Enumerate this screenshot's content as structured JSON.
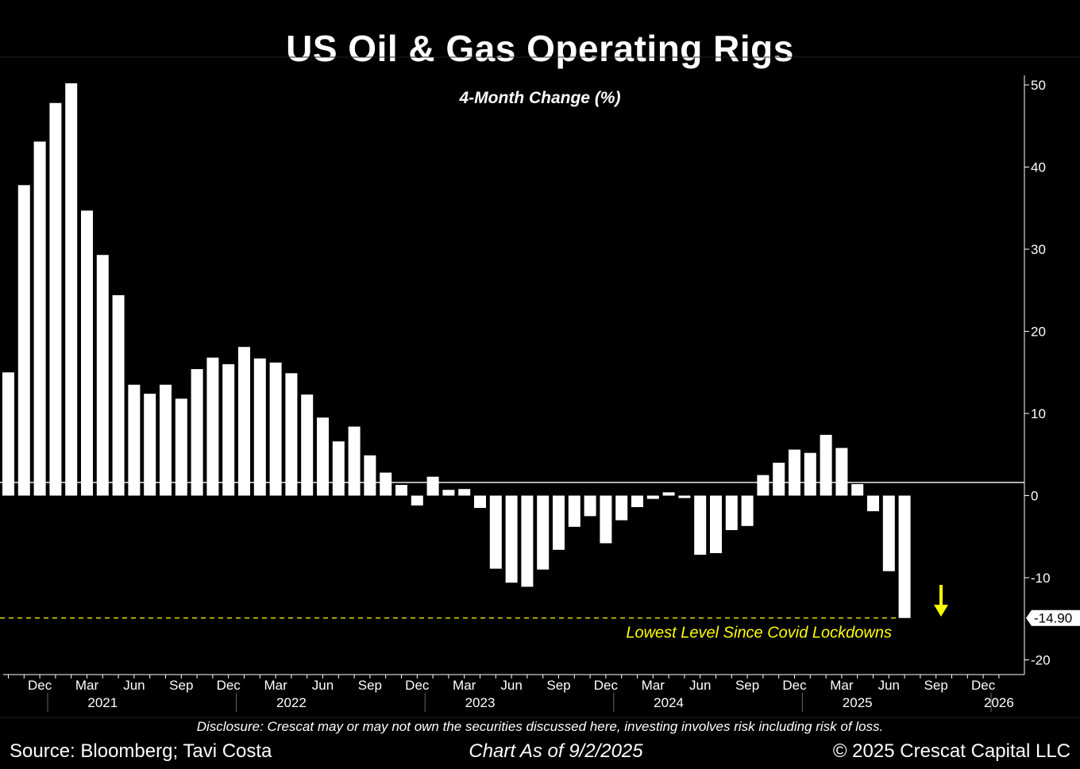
{
  "title": "US Oil & Gas Operating Rigs",
  "subtitle": "4-Month Change (%)",
  "footer": {
    "disclosure": "Disclosure: Crescat may or may not own the securities discussed here, investing involves risk including risk of loss.",
    "source": "Source: Bloomberg; Tavi Costa",
    "as_of": "Chart As of 9/2/2025",
    "copyright": "© 2025 Crescat Capital LLC"
  },
  "colors": {
    "background": "#000000",
    "bars": "#ffffff",
    "annotation": "#ffff00",
    "axis": "#ffffff"
  },
  "chart_data": {
    "type": "bar",
    "title": "US Oil & Gas Operating Rigs",
    "subtitle": "4-Month Change (%)",
    "ylim": [
      -21,
      52
    ],
    "y_ticks": [
      50,
      40,
      30,
      20,
      10,
      0,
      -10,
      -20
    ],
    "y_axis_side": "right",
    "x_start": "2020-10",
    "x_end": "2026-01",
    "months": [
      "2020-10",
      "2020-11",
      "2020-12",
      "2021-01",
      "2021-02",
      "2021-03",
      "2021-04",
      "2021-05",
      "2021-06",
      "2021-07",
      "2021-08",
      "2021-09",
      "2021-10",
      "2021-11",
      "2021-12",
      "2022-01",
      "2022-02",
      "2022-03",
      "2022-04",
      "2022-05",
      "2022-06",
      "2022-07",
      "2022-08",
      "2022-09",
      "2022-10",
      "2022-11",
      "2022-12",
      "2023-01",
      "2023-02",
      "2023-03",
      "2023-04",
      "2023-05",
      "2023-06",
      "2023-07",
      "2023-08",
      "2023-09",
      "2023-10",
      "2023-11",
      "2023-12",
      "2024-01",
      "2024-02",
      "2024-03",
      "2024-04",
      "2024-05",
      "2024-06",
      "2024-07",
      "2024-08",
      "2024-09",
      "2024-10",
      "2024-11",
      "2024-12",
      "2025-01",
      "2025-02",
      "2025-03",
      "2025-04",
      "2025-05",
      "2025-06",
      "2025-07"
    ],
    "values": [
      15.0,
      37.8,
      43.1,
      47.8,
      50.2,
      34.7,
      29.3,
      24.4,
      13.5,
      12.4,
      13.5,
      11.8,
      15.4,
      16.8,
      16.0,
      18.1,
      16.7,
      16.2,
      14.9,
      12.3,
      9.5,
      6.6,
      8.4,
      4.9,
      2.8,
      1.3,
      -1.2,
      2.3,
      0.7,
      0.8,
      -1.5,
      -8.9,
      -10.6,
      -11.1,
      -9.0,
      -6.6,
      -3.8,
      -2.5,
      -5.8,
      -3.0,
      -1.4,
      -0.4,
      0.4,
      -0.3,
      -7.2,
      -7.0,
      -4.2,
      -3.7,
      2.5,
      4.0,
      5.6,
      5.2,
      7.4,
      5.8,
      1.4,
      -1.9,
      -9.2,
      -14.9
    ],
    "x_tick_labels": [
      "Dec",
      "Mar",
      "Jun",
      "Sep",
      "Dec",
      "Mar",
      "Jun",
      "Sep",
      "Dec",
      "Mar",
      "Jun",
      "Sep",
      "Dec",
      "Mar",
      "Jun",
      "Sep",
      "Dec",
      "Mar",
      "Jun",
      "Sep",
      "Dec"
    ],
    "x_tick_months": [
      "2020-12",
      "2021-03",
      "2021-06",
      "2021-09",
      "2021-12",
      "2022-03",
      "2022-06",
      "2022-09",
      "2022-12",
      "2023-03",
      "2023-06",
      "2023-09",
      "2023-12",
      "2024-03",
      "2024-06",
      "2024-09",
      "2024-12",
      "2025-03",
      "2025-06",
      "2025-09",
      "2025-12"
    ],
    "year_labels": [
      "2021",
      "2022",
      "2023",
      "2024",
      "2025",
      "2026"
    ],
    "year_label_months": [
      "2021-04",
      "2022-04",
      "2023-04",
      "2024-04",
      "2025-04",
      "2026-01"
    ],
    "reference_line": {
      "value": 1.6,
      "color": "#ffffff"
    },
    "last_value_label": "-14.90",
    "annotation": {
      "text": "Lowest Level Since Covid Lockdowns",
      "level": -14.9,
      "style": "dashed",
      "arrow": "down"
    }
  }
}
